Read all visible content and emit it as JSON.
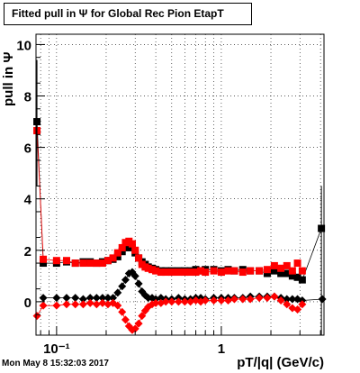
{
  "chart_data": {
    "type": "scatter",
    "title": "Fitted pull in  Ψ  for Global Rec Pion EtapT",
    "xlabel": "pT/|q| (GeV/c)",
    "ylabel": "pull in  Ψ",
    "xscale": "log",
    "xlim": [
      0.075,
      4.2
    ],
    "ylim": [
      -1.3,
      10.4
    ],
    "grid": true,
    "x_tick_labels": [
      "10⁻¹",
      "1"
    ],
    "y_ticks": [
      0,
      2,
      4,
      6,
      8,
      10
    ],
    "series": [
      {
        "color": "#000000",
        "marker": "square",
        "points": [
          [
            0.076,
            7.0
          ],
          [
            0.083,
            1.5
          ],
          [
            0.1,
            1.5
          ],
          [
            0.115,
            1.55
          ],
          [
            0.13,
            1.5
          ],
          [
            0.145,
            1.55
          ],
          [
            0.16,
            1.55
          ],
          [
            0.175,
            1.5
          ],
          [
            0.19,
            1.55
          ],
          [
            0.205,
            1.6
          ],
          [
            0.22,
            1.65
          ],
          [
            0.235,
            1.75
          ],
          [
            0.25,
            1.95
          ],
          [
            0.262,
            2.1
          ],
          [
            0.275,
            2.15
          ],
          [
            0.288,
            2.1
          ],
          [
            0.3,
            1.9
          ],
          [
            0.315,
            1.7
          ],
          [
            0.33,
            1.55
          ],
          [
            0.345,
            1.45
          ],
          [
            0.36,
            1.35
          ],
          [
            0.38,
            1.3
          ],
          [
            0.4,
            1.25
          ],
          [
            0.43,
            1.2
          ],
          [
            0.46,
            1.2
          ],
          [
            0.5,
            1.2
          ],
          [
            0.55,
            1.2
          ],
          [
            0.6,
            1.2
          ],
          [
            0.65,
            1.2
          ],
          [
            0.7,
            1.25
          ],
          [
            0.75,
            1.2
          ],
          [
            0.8,
            1.25
          ],
          [
            0.9,
            1.25
          ],
          [
            1.0,
            1.2
          ],
          [
            1.1,
            1.25
          ],
          [
            1.2,
            1.2
          ],
          [
            1.35,
            1.25
          ],
          [
            1.5,
            1.2
          ],
          [
            1.7,
            1.2
          ],
          [
            1.9,
            1.1
          ],
          [
            2.1,
            1.2
          ],
          [
            2.3,
            1.1
          ],
          [
            2.5,
            1.1
          ],
          [
            2.7,
            1.0
          ],
          [
            2.9,
            0.95
          ],
          [
            3.1,
            0.85
          ],
          [
            4.05,
            2.85
          ]
        ]
      },
      {
        "color": "#000000",
        "marker": "diamond",
        "points": [
          [
            0.083,
            0.15
          ],
          [
            0.1,
            0.15
          ],
          [
            0.115,
            0.15
          ],
          [
            0.13,
            0.15
          ],
          [
            0.145,
            0.1
          ],
          [
            0.16,
            0.15
          ],
          [
            0.175,
            0.15
          ],
          [
            0.19,
            0.15
          ],
          [
            0.205,
            0.15
          ],
          [
            0.22,
            0.15
          ],
          [
            0.235,
            0.35
          ],
          [
            0.25,
            0.6
          ],
          [
            0.262,
            0.85
          ],
          [
            0.275,
            1.1
          ],
          [
            0.288,
            1.15
          ],
          [
            0.3,
            1.0
          ],
          [
            0.315,
            0.7
          ],
          [
            0.33,
            0.4
          ],
          [
            0.345,
            0.25
          ],
          [
            0.36,
            0.15
          ],
          [
            0.38,
            0.15
          ],
          [
            0.4,
            0.1
          ],
          [
            0.43,
            0.15
          ],
          [
            0.46,
            0.1
          ],
          [
            0.5,
            0.1
          ],
          [
            0.55,
            0.15
          ],
          [
            0.6,
            0.1
          ],
          [
            0.65,
            0.1
          ],
          [
            0.7,
            0.15
          ],
          [
            0.75,
            0.15
          ],
          [
            0.8,
            0.1
          ],
          [
            0.9,
            0.15
          ],
          [
            1.0,
            0.15
          ],
          [
            1.1,
            0.15
          ],
          [
            1.2,
            0.15
          ],
          [
            1.35,
            0.15
          ],
          [
            1.5,
            0.2
          ],
          [
            1.7,
            0.2
          ],
          [
            1.9,
            0.2
          ],
          [
            2.1,
            0.2
          ],
          [
            2.3,
            0.15
          ],
          [
            2.5,
            0.1
          ],
          [
            2.7,
            0.1
          ],
          [
            2.9,
            0.1
          ],
          [
            3.1,
            0.05
          ],
          [
            4.1,
            0.1
          ]
        ]
      },
      {
        "color": "#ff0000",
        "marker": "square",
        "points": [
          [
            0.076,
            6.65
          ],
          [
            0.083,
            1.65
          ],
          [
            0.1,
            1.6
          ],
          [
            0.115,
            1.6
          ],
          [
            0.13,
            1.5
          ],
          [
            0.145,
            1.5
          ],
          [
            0.16,
            1.5
          ],
          [
            0.175,
            1.5
          ],
          [
            0.19,
            1.5
          ],
          [
            0.205,
            1.6
          ],
          [
            0.22,
            1.7
          ],
          [
            0.235,
            1.9
          ],
          [
            0.25,
            2.1
          ],
          [
            0.262,
            2.3
          ],
          [
            0.275,
            2.35
          ],
          [
            0.288,
            2.25
          ],
          [
            0.3,
            2.0
          ],
          [
            0.315,
            1.7
          ],
          [
            0.33,
            1.45
          ],
          [
            0.345,
            1.35
          ],
          [
            0.36,
            1.3
          ],
          [
            0.38,
            1.25
          ],
          [
            0.4,
            1.2
          ],
          [
            0.43,
            1.15
          ],
          [
            0.46,
            1.15
          ],
          [
            0.5,
            1.15
          ],
          [
            0.55,
            1.15
          ],
          [
            0.6,
            1.15
          ],
          [
            0.65,
            1.15
          ],
          [
            0.7,
            1.15
          ],
          [
            0.75,
            1.2
          ],
          [
            0.8,
            1.15
          ],
          [
            0.9,
            1.2
          ],
          [
            1.0,
            1.15
          ],
          [
            1.1,
            1.2
          ],
          [
            1.2,
            1.2
          ],
          [
            1.35,
            1.15
          ],
          [
            1.5,
            1.2
          ],
          [
            1.7,
            1.2
          ],
          [
            1.9,
            1.25
          ],
          [
            2.1,
            1.4
          ],
          [
            2.3,
            1.3
          ],
          [
            2.5,
            1.4
          ],
          [
            2.7,
            1.2
          ],
          [
            2.9,
            1.5
          ],
          [
            3.1,
            1.2
          ]
        ]
      },
      {
        "color": "#ff0000",
        "marker": "diamond",
        "points": [
          [
            0.076,
            -0.55
          ],
          [
            0.083,
            -0.15
          ],
          [
            0.1,
            -0.15
          ],
          [
            0.115,
            -0.1
          ],
          [
            0.13,
            -0.1
          ],
          [
            0.145,
            -0.1
          ],
          [
            0.16,
            -0.05
          ],
          [
            0.175,
            -0.1
          ],
          [
            0.19,
            -0.05
          ],
          [
            0.205,
            -0.1
          ],
          [
            0.22,
            -0.05
          ],
          [
            0.235,
            -0.15
          ],
          [
            0.25,
            -0.4
          ],
          [
            0.262,
            -0.7
          ],
          [
            0.275,
            -0.95
          ],
          [
            0.288,
            -1.1
          ],
          [
            0.3,
            -1.05
          ],
          [
            0.315,
            -0.85
          ],
          [
            0.33,
            -0.55
          ],
          [
            0.345,
            -0.35
          ],
          [
            0.36,
            -0.2
          ],
          [
            0.38,
            -0.1
          ],
          [
            0.4,
            -0.05
          ],
          [
            0.43,
            -0.05
          ],
          [
            0.46,
            0.0
          ],
          [
            0.5,
            0.0
          ],
          [
            0.55,
            0.0
          ],
          [
            0.6,
            0.0
          ],
          [
            0.65,
            0.0
          ],
          [
            0.7,
            0.05
          ],
          [
            0.75,
            0.0
          ],
          [
            0.8,
            0.05
          ],
          [
            0.9,
            0.05
          ],
          [
            1.0,
            0.05
          ],
          [
            1.1,
            0.05
          ],
          [
            1.2,
            0.1
          ],
          [
            1.35,
            0.1
          ],
          [
            1.5,
            0.1
          ],
          [
            1.7,
            0.15
          ],
          [
            1.9,
            0.15
          ],
          [
            2.1,
            0.2
          ],
          [
            2.3,
            0.05
          ],
          [
            2.5,
            -0.1
          ],
          [
            2.7,
            -0.25
          ],
          [
            2.9,
            -0.3
          ],
          [
            3.1,
            -0.1
          ]
        ]
      }
    ]
  },
  "footer": {
    "timestamp": "Mon May  8 15:32:03 2017"
  }
}
